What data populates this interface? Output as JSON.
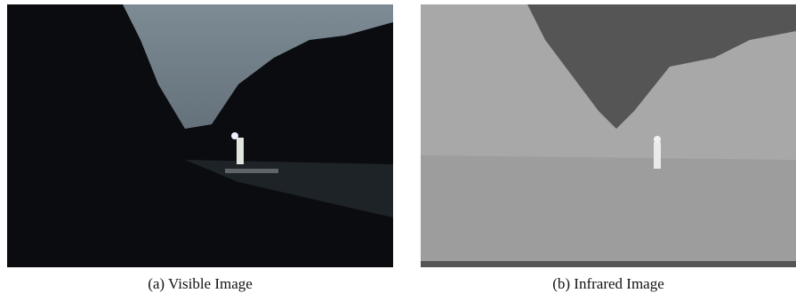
{
  "figure": {
    "panels": [
      {
        "caption": "(a) Visible Image"
      },
      {
        "caption": "(b) Infrared Image"
      }
    ]
  }
}
